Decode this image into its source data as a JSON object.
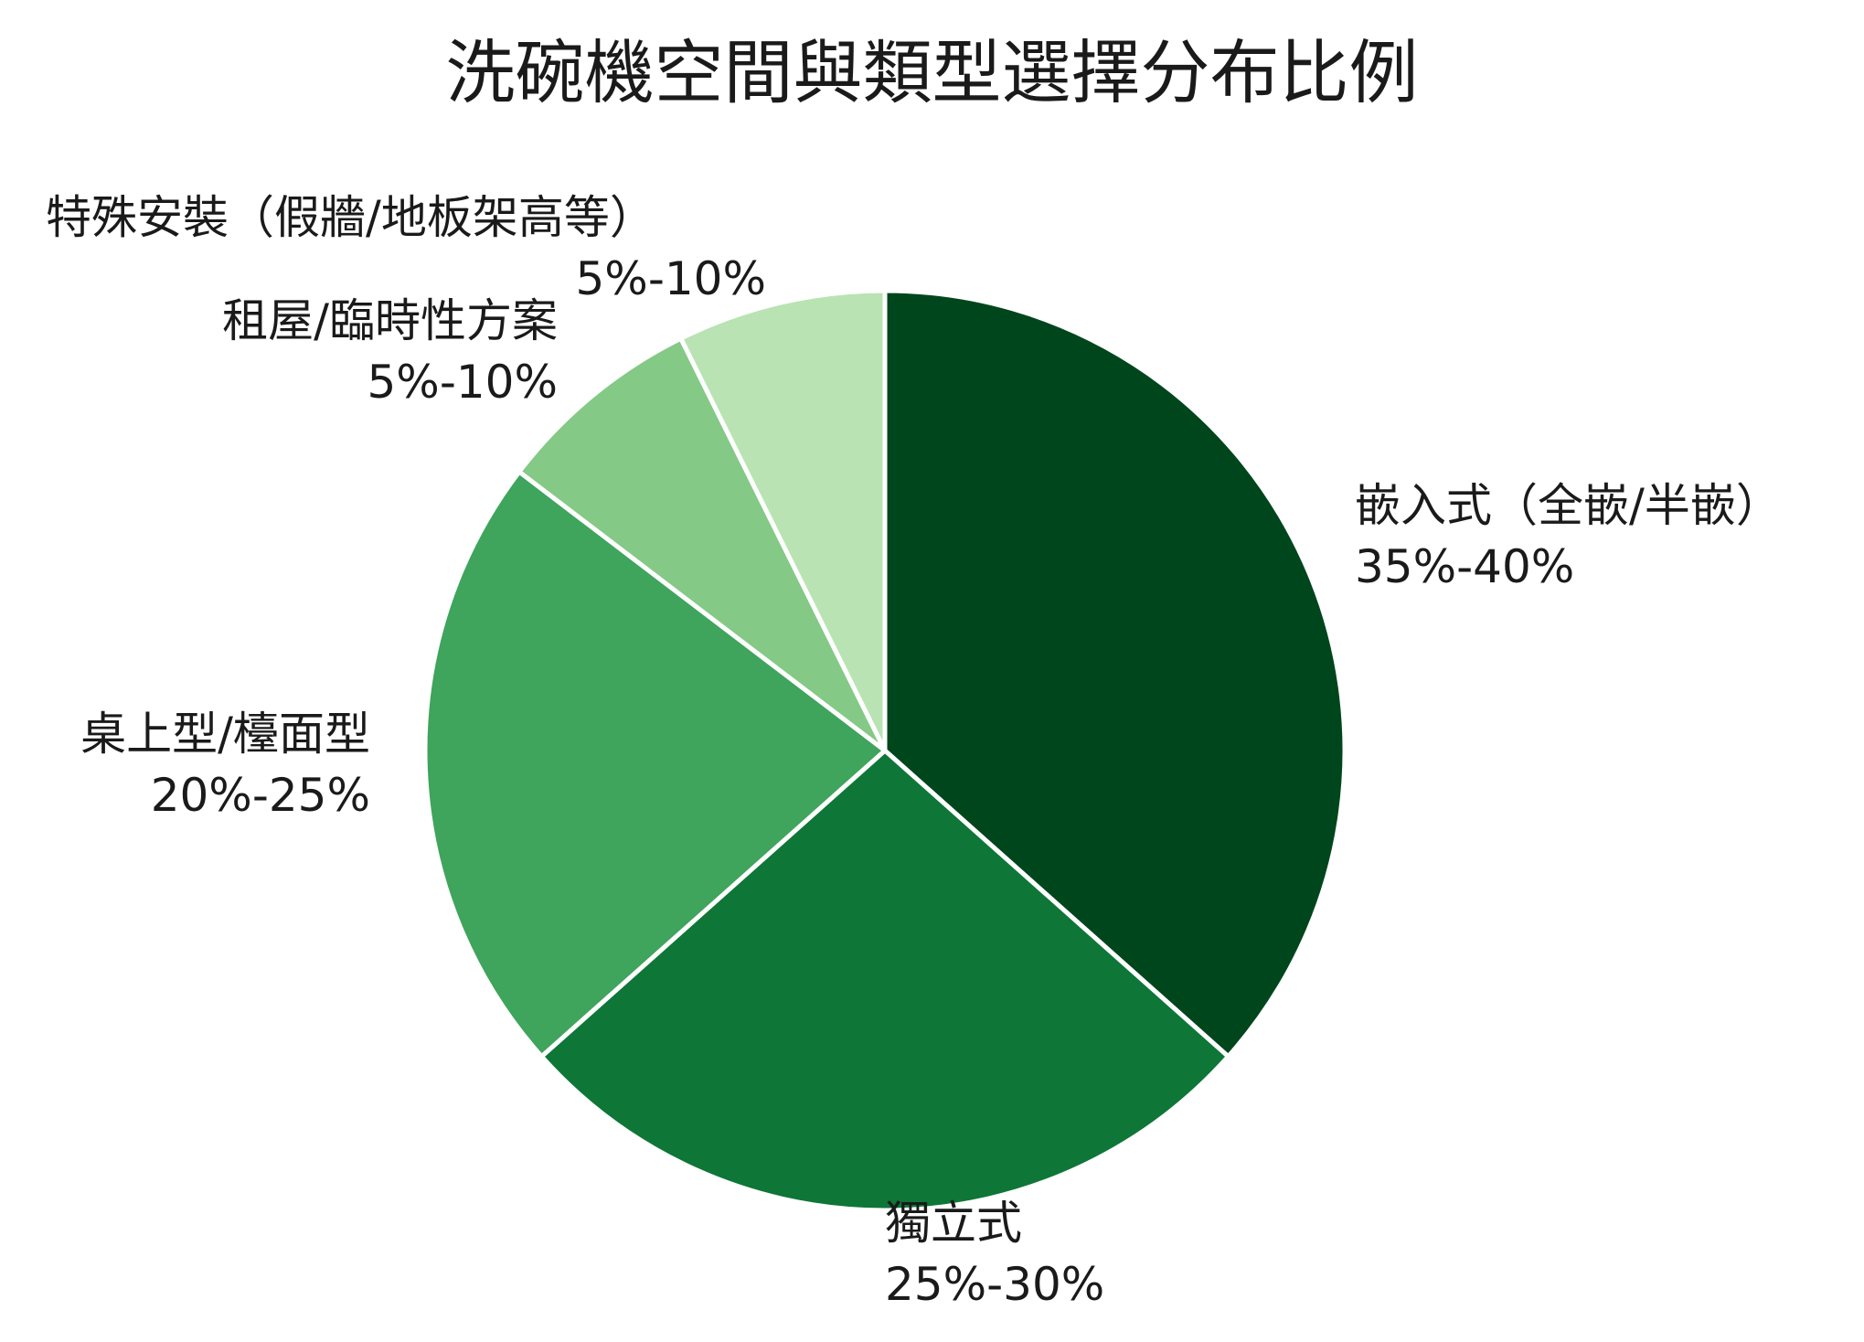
{
  "chart_data": {
    "type": "pie",
    "title": "洗碗機空間與類型選擇分布比例",
    "start_angle_deg": 0,
    "direction": "clockwise",
    "slices": [
      {
        "name": "嵌入式（全嵌/半嵌）",
        "range_label": "35%-40%",
        "value": 37.5,
        "color": "#00461c"
      },
      {
        "name": "獨立式",
        "range_label": "25%-30%",
        "value": 27.5,
        "color": "#0e7637"
      },
      {
        "name": "桌上型/檯面型",
        "range_label": "20%-25%",
        "value": 22.5,
        "color": "#3fa45c"
      },
      {
        "name": "租屋/臨時性方案",
        "range_label": "5%-10%",
        "value": 7.5,
        "color": "#84c986"
      },
      {
        "name": "特殊安裝（假牆/地板架高等）",
        "range_label": "5%-10%",
        "value": 7.5,
        "color": "#b9e3b3"
      }
    ],
    "slice_border_color": "#ffffff",
    "legend": "none"
  }
}
